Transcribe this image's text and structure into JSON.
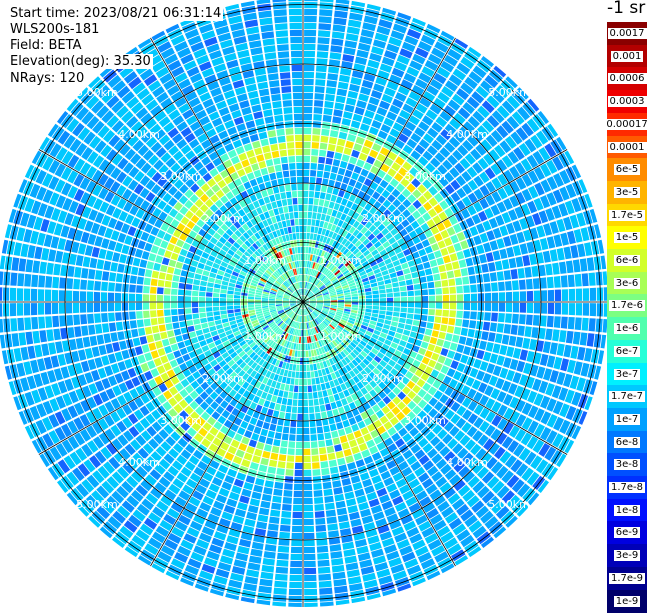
{
  "info": {
    "start_time": "Start time: 2023/08/21 06:31:14",
    "instrument": "WLS200s-181",
    "field": "Field: BETA",
    "elevation": "Elevation(deg): 35.30",
    "nrays": "NRays: 120"
  },
  "units_label": "-1 sr",
  "range_rings": [
    "1.00km",
    "2.00km",
    "3.00km",
    "4.00km",
    "5.00km"
  ],
  "colorbar": {
    "labels": [
      "0.0017",
      "0.001",
      "0.0006",
      "0.0003",
      "0.00017",
      "0.0001",
      "6e-5",
      "3e-5",
      "1.7e-5",
      "1e-5",
      "6e-6",
      "3e-6",
      "1.7e-6",
      "1e-6",
      "6e-7",
      "3e-7",
      "1.7e-7",
      "1e-7",
      "6e-8",
      "3e-8",
      "1.7e-8",
      "1e-8",
      "6e-9",
      "3e-9",
      "1.7e-9",
      "1e-9"
    ],
    "colors": [
      "#8a0000",
      "#b30000",
      "#d40000",
      "#f00000",
      "#ff2a00",
      "#ff5a00",
      "#ff8c00",
      "#ffb400",
      "#ffd800",
      "#ffff00",
      "#d2ff2a",
      "#a8ff56",
      "#7cff82",
      "#50ffae",
      "#26ffd8",
      "#00f0ff",
      "#00c8ff",
      "#00a0ff",
      "#0078ff",
      "#0050ff",
      "#0030ff",
      "#0010ff",
      "#0000e0",
      "#0000b8",
      "#000090",
      "#00006a"
    ]
  },
  "chart_data": {
    "type": "heatmap",
    "projection": "polar (PPI scan)",
    "rays": 120,
    "range_rings_km": [
      1,
      2,
      3,
      4,
      5
    ],
    "colorscale_labels": [
      "0.0017",
      "0.001",
      "0.0006",
      "0.0003",
      "0.00017",
      "0.0001",
      "6e-5",
      "3e-5",
      "1.7e-5",
      "1e-5",
      "6e-6",
      "3e-6",
      "1.7e-6",
      "1e-6",
      "6e-7",
      "3e-7",
      "1.7e-7",
      "1e-7",
      "6e-8",
      "3e-8",
      "1.7e-8",
      "1e-8",
      "6e-9",
      "3e-9",
      "1.7e-9",
      "1e-9"
    ]
  }
}
